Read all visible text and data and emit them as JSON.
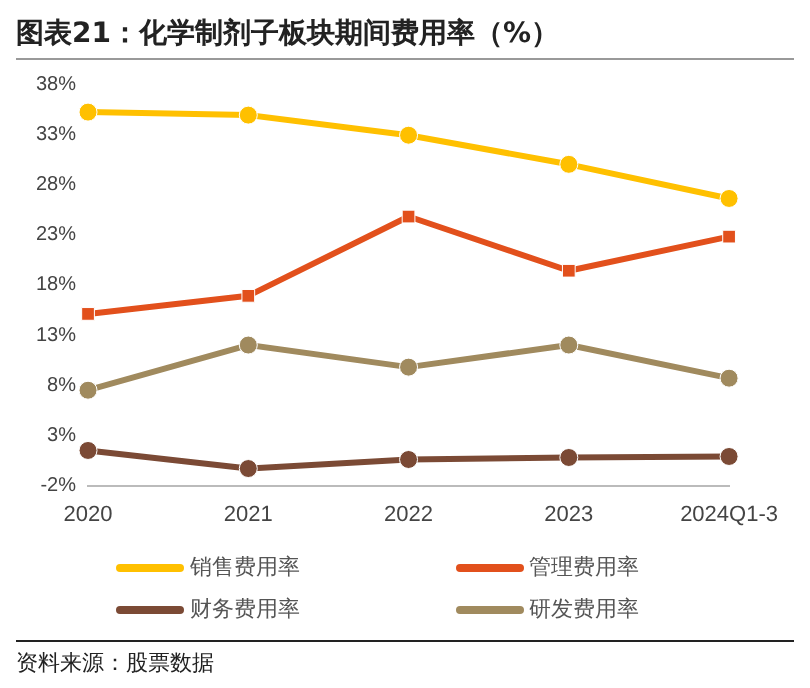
{
  "chart_data": {
    "type": "line",
    "title": "图表21：化学制剂子板块期间费用率（%）",
    "categories": [
      "2020",
      "2021",
      "2022",
      "2023",
      "2024Q1-3"
    ],
    "series": [
      {
        "name": "销售费用率",
        "color": "#ffc000",
        "marker": "circle",
        "values": [
          35.2,
          34.9,
          32.9,
          30.0,
          26.6
        ]
      },
      {
        "name": "管理费用率",
        "color": "#e2501c",
        "marker": "square",
        "values": [
          15.1,
          16.9,
          24.8,
          19.4,
          22.8
        ]
      },
      {
        "name": "财务费用率",
        "color": "#7b4a35",
        "marker": "circle",
        "values": [
          1.5,
          -0.3,
          0.6,
          0.8,
          0.9
        ]
      },
      {
        "name": "研发费用率",
        "color": "#a08a5e",
        "marker": "circle",
        "values": [
          7.5,
          12.0,
          9.8,
          12.0,
          8.7
        ]
      }
    ],
    "ylim": [
      -2,
      38
    ],
    "yticks": [
      {
        "value": -2,
        "label": "-2%"
      },
      {
        "value": 3,
        "label": "3%"
      },
      {
        "value": 8,
        "label": "8%"
      },
      {
        "value": 13,
        "label": "13%"
      },
      {
        "value": 18,
        "label": "18%"
      },
      {
        "value": 23,
        "label": "23%"
      },
      {
        "value": 28,
        "label": "28%"
      },
      {
        "value": 33,
        "label": "33%"
      },
      {
        "value": 38,
        "label": "38%"
      }
    ],
    "grid": false,
    "legend": "bottom",
    "annotations": [
      "资料来源：股票数据"
    ]
  }
}
